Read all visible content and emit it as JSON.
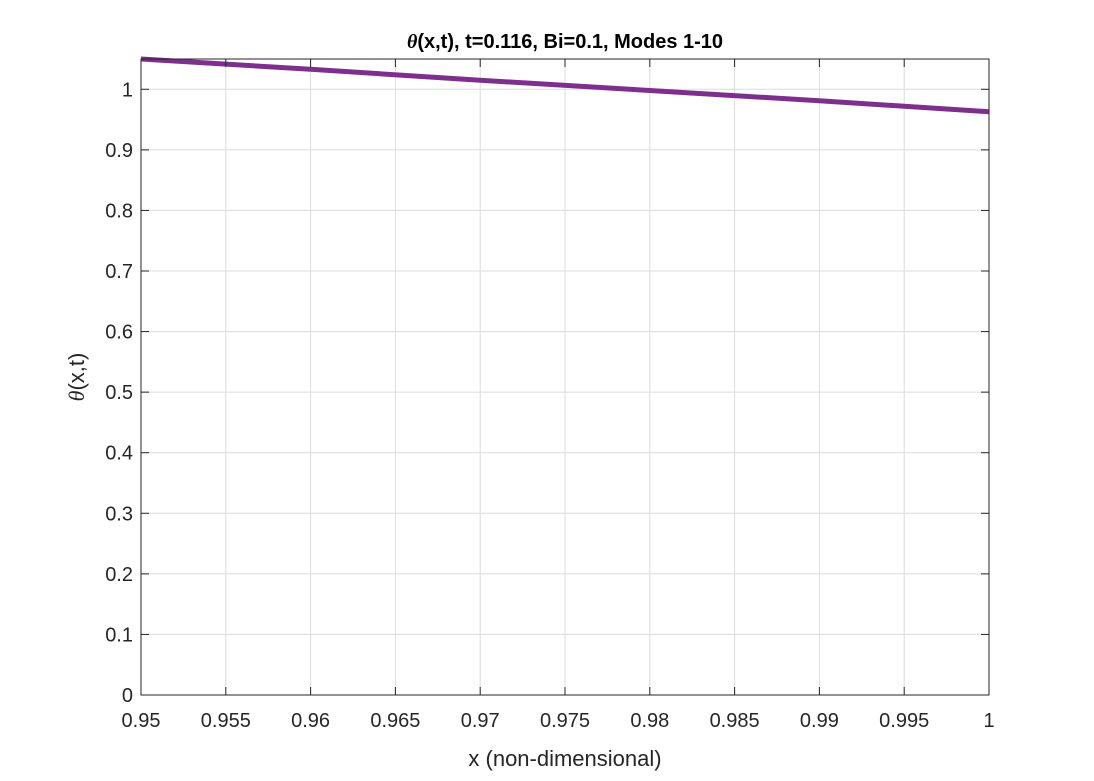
{
  "chart_data": {
    "type": "line",
    "title": {
      "symbol": "θ",
      "rest": "(x,t), t=0.116, Bi=0.1, Modes 1-10"
    },
    "xlabel": "x (non-dimensional)",
    "ylabel": {
      "symbol": "θ",
      "rest": "(x,t)"
    },
    "xlim": [
      0.95,
      1.0
    ],
    "ylim": [
      0,
      1.05
    ],
    "xticks": [
      0.95,
      0.955,
      0.96,
      0.965,
      0.97,
      0.975,
      0.98,
      0.985,
      0.99,
      0.995,
      1.0
    ],
    "xtick_labels": [
      "0.95",
      "0.955",
      "0.96",
      "0.965",
      "0.97",
      "0.975",
      "0.98",
      "0.985",
      "0.99",
      "0.995",
      "1"
    ],
    "yticks": [
      0,
      0.1,
      0.2,
      0.3,
      0.4,
      0.5,
      0.6,
      0.7,
      0.8,
      0.9,
      1.0
    ],
    "ytick_labels": [
      "0",
      "0.1",
      "0.2",
      "0.3",
      "0.4",
      "0.5",
      "0.6",
      "0.7",
      "0.8",
      "0.9",
      "1"
    ],
    "grid": true,
    "box": true,
    "series": [
      {
        "color": "#7E2F8E",
        "x": [
          0.95,
          0.96,
          0.97,
          0.98,
          0.99,
          1.0
        ],
        "y": [
          1.05,
          1.033,
          1.015,
          0.998,
          0.981,
          0.963
        ]
      }
    ]
  }
}
